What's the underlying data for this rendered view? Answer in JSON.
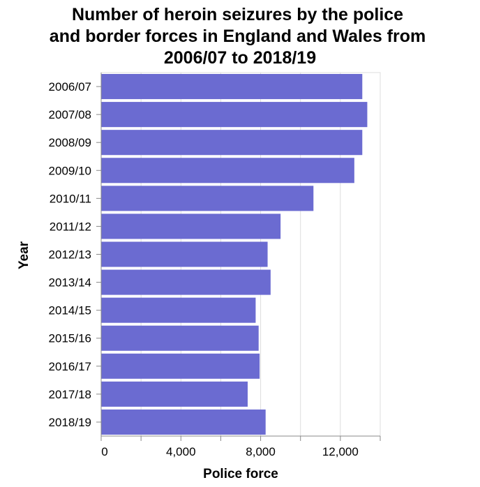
{
  "chart_data": {
    "type": "bar",
    "orientation": "horizontal",
    "title": "Number of heroin seizures by the police and border forces in England and Wales from 2006/07 to 2018/19",
    "title_lines": [
      "Number of heroin seizures by the police",
      "and border forces in England and Wales from",
      "2006/07 to 2018/19"
    ],
    "xlabel": "Police force",
    "ylabel": "Year",
    "categories": [
      "2006/07",
      "2007/08",
      "2008/09",
      "2009/10",
      "2010/11",
      "2011/12",
      "2012/13",
      "2013/14",
      "2014/15",
      "2015/16",
      "2016/17",
      "2017/18",
      "2018/19"
    ],
    "values": [
      13100,
      13350,
      13100,
      12700,
      10650,
      9000,
      8350,
      8500,
      7750,
      7900,
      7950,
      7350,
      8250
    ],
    "xlim": [
      0,
      14000
    ],
    "xticks": [
      0,
      4000,
      8000,
      12000
    ],
    "xtick_labels": [
      "0",
      "4,000",
      "8,000",
      "12,000"
    ],
    "bar_color": "#6b6bd1",
    "grid": "vertical gridlines",
    "legend": "none"
  }
}
